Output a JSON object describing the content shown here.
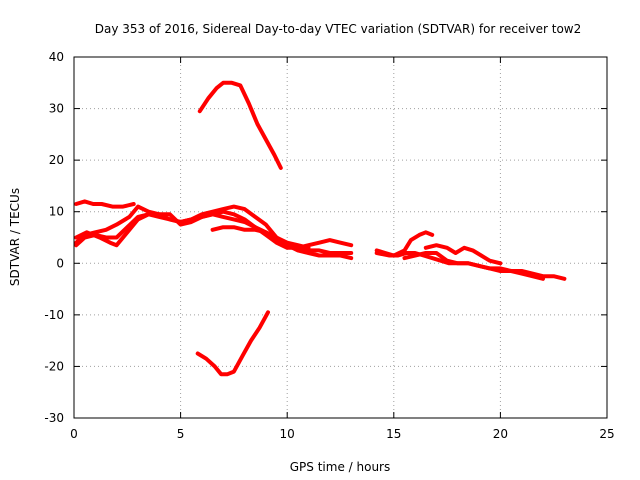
{
  "chart_data": {
    "type": "line",
    "title": "Day 353 of 2016, Sidereal Day-to-day VTEC variation (SDTVAR) for receiver tow2",
    "xlabel": "GPS time / hours",
    "ylabel": "SDTVAR / TECUs",
    "xlim": [
      0,
      25
    ],
    "ylim": [
      -30,
      40
    ],
    "xticks": [
      0,
      5,
      10,
      15,
      20,
      25
    ],
    "yticks": [
      -30,
      -20,
      -10,
      0,
      10,
      20,
      30,
      40
    ],
    "grid": true,
    "color": "#ff0000",
    "series": [
      {
        "name": "arc-high",
        "x": [
          5.9,
          6.3,
          6.7,
          7.0,
          7.4,
          7.8,
          8.2,
          8.6,
          9.0,
          9.4,
          9.7
        ],
        "y": [
          29.5,
          32,
          34,
          35,
          35,
          34.5,
          31,
          27,
          24,
          21,
          18.5
        ]
      },
      {
        "name": "arc-low",
        "x": [
          5.8,
          6.2,
          6.6,
          6.9,
          7.2,
          7.5,
          7.9,
          8.3,
          8.7,
          9.1
        ],
        "y": [
          -17.5,
          -18.5,
          -20,
          -21.5,
          -21.5,
          -21,
          -18,
          -15,
          -12.5,
          -9.5
        ]
      },
      {
        "name": "pass-a",
        "x": [
          0.1,
          0.5,
          0.9,
          1.3,
          1.8,
          2.3,
          2.8
        ],
        "y": [
          11.5,
          12,
          11.5,
          11.5,
          11,
          11,
          11.5
        ]
      },
      {
        "name": "pass-b",
        "x": [
          0.1,
          0.5,
          1.0,
          1.5,
          2.0,
          2.6,
          3.0,
          3.5,
          4.0,
          4.5,
          5.0,
          5.5,
          6.0,
          6.5,
          7.0,
          7.5,
          8.0,
          8.5,
          9.0,
          9.5,
          10.0,
          10.5,
          11.0,
          11.5,
          12.0,
          12.5,
          13.0
        ],
        "y": [
          4,
          5.5,
          6,
          6.5,
          7.5,
          9,
          11,
          10,
          9.5,
          8.5,
          8,
          8.5,
          9.5,
          10,
          10.5,
          11,
          10.5,
          9,
          7.5,
          5,
          3.5,
          3,
          3.5,
          4,
          4.5,
          4,
          3.5
        ]
      },
      {
        "name": "pass-c",
        "x": [
          0.1,
          0.5,
          1.0,
          1.5,
          2.0,
          2.5,
          3.0,
          3.5,
          4.0,
          4.5,
          5.0,
          5.5,
          6.0,
          6.5,
          7.0,
          7.5,
          8.0,
          8.5,
          9.0,
          9.5,
          10.0,
          10.5,
          11.0,
          11.5,
          12.0,
          12.5,
          13.0
        ],
        "y": [
          3.5,
          5,
          5.5,
          5,
          5,
          7,
          9,
          9.5,
          9,
          8.5,
          8,
          8.5,
          9,
          9.5,
          9,
          8.5,
          8,
          7,
          5.5,
          4,
          3,
          3,
          2.5,
          2.5,
          2,
          2,
          2
        ]
      },
      {
        "name": "pass-d",
        "x": [
          0.1,
          0.6,
          1.2,
          1.7,
          2.0,
          2.5,
          3.0,
          3.5,
          4.0,
          4.5,
          5.0,
          5.5,
          6.0,
          6.5,
          7.0,
          7.5,
          8.0,
          8.5,
          9.0,
          9.5,
          10.0,
          10.5,
          11.0,
          11.5,
          12.0,
          12.5,
          13.0
        ],
        "y": [
          5,
          6,
          5,
          4,
          3.5,
          6,
          8.5,
          9.5,
          9.5,
          9.5,
          7.5,
          8,
          9,
          9.5,
          10,
          9.5,
          8.5,
          7,
          6,
          4.5,
          3.5,
          2.5,
          2,
          1.5,
          1.5,
          1.5,
          1
        ]
      },
      {
        "name": "pass-e",
        "x": [
          6.5,
          7.0,
          7.5,
          8.0,
          8.5,
          9.0,
          9.5,
          10.0,
          10.5,
          11.0
        ],
        "y": [
          6.5,
          7,
          7,
          6.5,
          6.5,
          6,
          5,
          4,
          3.5,
          3
        ]
      },
      {
        "name": "pass-f",
        "x": [
          14.2,
          14.6,
          15.0,
          15.5,
          15.8,
          16.2,
          16.5,
          16.8
        ],
        "y": [
          2.5,
          2,
          1.5,
          2.5,
          4.5,
          5.5,
          6,
          5.5
        ]
      },
      {
        "name": "pass-g",
        "x": [
          14.2,
          14.8,
          15.2,
          15.6,
          16.0,
          16.4,
          16.8,
          17.2,
          17.6,
          18.0,
          18.5,
          19.0,
          19.5,
          20.0,
          20.5,
          21.0,
          21.5,
          22.0,
          22.5,
          23.0
        ],
        "y": [
          2,
          1.5,
          1.5,
          2,
          2,
          1.5,
          1,
          0.5,
          0,
          0,
          0,
          -0.5,
          -1,
          -1,
          -1.5,
          -1.5,
          -2,
          -2.5,
          -2.5,
          -3
        ]
      },
      {
        "name": "pass-h",
        "x": [
          15.5,
          16.0,
          16.5,
          17.0,
          17.5,
          18.0,
          18.5,
          19.0,
          19.5,
          20.0,
          20.5,
          21.0,
          21.5,
          22.0
        ],
        "y": [
          1,
          1.5,
          2,
          2,
          0.5,
          0,
          0,
          -0.5,
          -1,
          -1.5,
          -1.5,
          -2,
          -2.5,
          -3
        ]
      },
      {
        "name": "pass-i",
        "x": [
          16.5,
          17.0,
          17.5,
          17.9,
          18.3,
          18.7,
          19.1,
          19.5,
          20.0
        ],
        "y": [
          3,
          3.5,
          3,
          2,
          3,
          2.5,
          1.5,
          0.5,
          0
        ]
      }
    ]
  }
}
